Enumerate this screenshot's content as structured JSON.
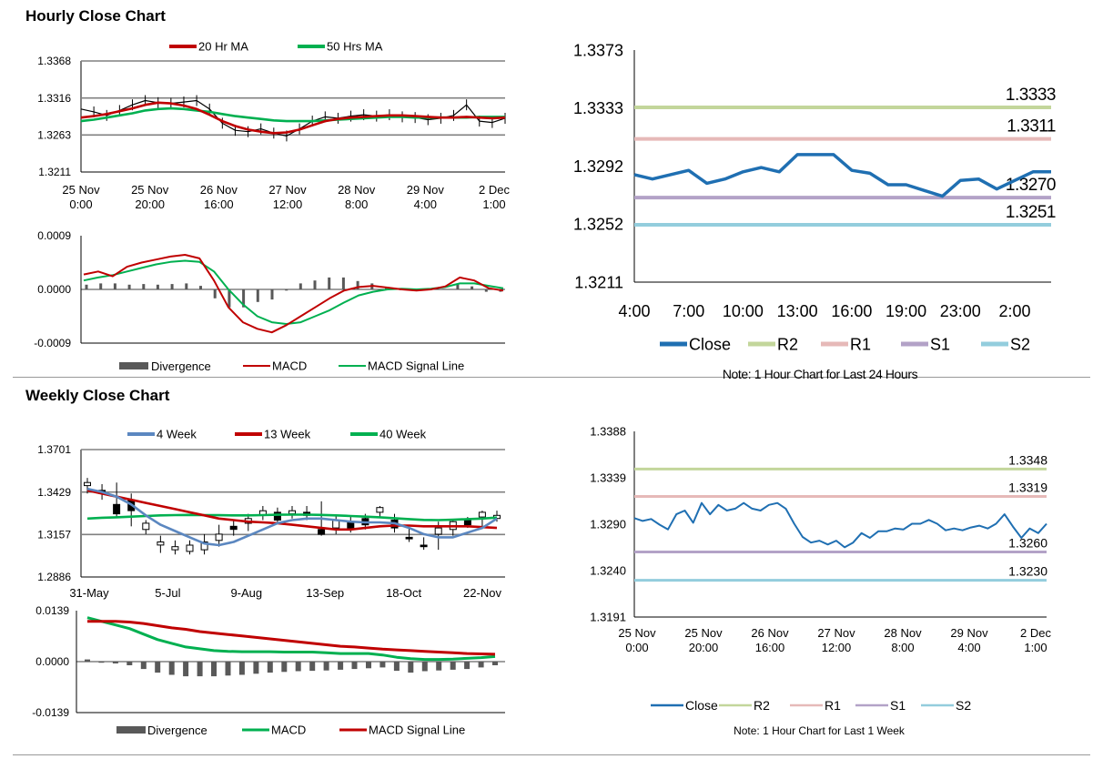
{
  "sections": {
    "hourly_title": "Hourly Close Chart",
    "weekly_title": "Weekly Close Chart"
  },
  "colors": {
    "ma_short": "#c00000",
    "ma_long": "#00b050",
    "ma_4week": "#5b87c0",
    "close": "#1f6fb2",
    "r2": "#c3d69b",
    "r1": "#e6b9b8",
    "s1": "#b3a2c7",
    "s2": "#93cddd",
    "divergence": "#595959",
    "grid": "#808080"
  },
  "chart_data": [
    {
      "id": "hourly-price",
      "type": "line",
      "title": "",
      "legend": [
        "20 Hr MA",
        "50 Hrs MA"
      ],
      "y_ticks": [
        "1.3368",
        "1.3316",
        "1.3263",
        "1.3211"
      ],
      "ylim": [
        1.3211,
        1.3368
      ],
      "x_ticks": [
        [
          "25 Nov",
          "0:00"
        ],
        [
          "25 Nov",
          "20:00"
        ],
        [
          "26 Nov",
          "16:00"
        ],
        [
          "27 Nov",
          "12:00"
        ],
        [
          "28 Nov",
          "8:00"
        ],
        [
          "29 Nov",
          "4:00"
        ],
        [
          "2 Dec",
          "1:00"
        ]
      ],
      "close": [
        1.33,
        1.3296,
        1.3291,
        1.3298,
        1.3306,
        1.3312,
        1.3309,
        1.3308,
        1.331,
        1.3312,
        1.33,
        1.328,
        1.327,
        1.3268,
        1.3272,
        1.3266,
        1.3262,
        1.3272,
        1.3283,
        1.3289,
        1.3287,
        1.329,
        1.3292,
        1.329,
        1.3292,
        1.3289,
        1.3288,
        1.3285,
        1.3287,
        1.3291,
        1.3306,
        1.3283,
        1.3281,
        1.3287
      ],
      "ma20": [
        1.3288,
        1.329,
        1.3293,
        1.3297,
        1.3301,
        1.3306,
        1.3309,
        1.3308,
        1.3305,
        1.33,
        1.3292,
        1.3283,
        1.3276,
        1.3271,
        1.3268,
        1.3266,
        1.3267,
        1.3271,
        1.3277,
        1.3283,
        1.3286,
        1.3288,
        1.3289,
        1.329,
        1.3291,
        1.3291,
        1.329,
        1.3289,
        1.3288,
        1.3288,
        1.3289,
        1.3288,
        1.3287,
        1.3288
      ],
      "ma50": [
        1.3283,
        1.3285,
        1.3288,
        1.3291,
        1.3294,
        1.3298,
        1.33,
        1.3301,
        1.33,
        1.3298,
        1.3296,
        1.3293,
        1.329,
        1.3288,
        1.3286,
        1.3284,
        1.3283,
        1.3283,
        1.3283,
        1.3284,
        1.3285,
        1.3286,
        1.3287,
        1.3288,
        1.3289,
        1.3289,
        1.3288,
        1.3288,
        1.3288,
        1.3288,
        1.3288,
        1.3289,
        1.3289,
        1.3289
      ]
    },
    {
      "id": "hourly-macd",
      "type": "line",
      "legend": [
        "Divergence",
        "MACD",
        "MACD Signal Line"
      ],
      "y_ticks": [
        "0.0009",
        "0.0000",
        "-0.0009"
      ],
      "ylim": [
        -0.0009,
        0.0009
      ],
      "macd": [
        0.00025,
        0.0003,
        0.00022,
        0.00038,
        0.00045,
        0.0005,
        0.00055,
        0.00058,
        0.00052,
        0.00015,
        -0.0003,
        -0.00055,
        -0.00066,
        -0.00072,
        -0.0006,
        -0.00045,
        -0.0003,
        -0.00015,
        -2e-05,
        4e-05,
        6e-05,
        3e-05,
        0.0,
        -2e-05,
        0.0,
        5e-05,
        0.0002,
        0.00015,
        2e-05,
        -2e-05
      ],
      "signal": [
        0.00015,
        0.0002,
        0.00024,
        0.0003,
        0.00036,
        0.00042,
        0.00046,
        0.00048,
        0.00046,
        0.0003,
        0.0,
        -0.00025,
        -0.00045,
        -0.00055,
        -0.00058,
        -0.00055,
        -0.00045,
        -0.00035,
        -0.00022,
        -0.0001,
        -4e-05,
        0.0,
        1e-05,
        0.0,
        1e-05,
        4e-05,
        0.0001,
        0.0001,
        6e-05,
        2e-05
      ],
      "divergence": [
        8e-05,
        0.0001,
        0.0001,
        8e-05,
        9e-05,
        8e-05,
        9e-05,
        0.0001,
        6e-05,
        -0.00015,
        -0.0003,
        -0.0003,
        -0.00021,
        -0.00017,
        -2e-05,
        0.0001,
        0.00015,
        0.0002,
        0.0002,
        0.00014,
        0.0001,
        3e-05,
        -1e-05,
        -2e-05,
        -1e-05,
        1e-05,
        0.0001,
        5e-05,
        -4e-05,
        -4e-05
      ]
    },
    {
      "id": "hourly-24h",
      "type": "line",
      "y_ticks": [
        "1.3373",
        "1.3333",
        "1.3292",
        "1.3252",
        "1.3211"
      ],
      "ylim": [
        1.3211,
        1.3373
      ],
      "x_ticks": [
        "4:00",
        "7:00",
        "10:00",
        "13:00",
        "16:00",
        "19:00",
        "23:00",
        "2:00"
      ],
      "close": [
        1.3286,
        1.3283,
        1.3286,
        1.3289,
        1.328,
        1.3283,
        1.3288,
        1.3291,
        1.3288,
        1.33,
        1.33,
        1.33,
        1.3289,
        1.3287,
        1.3279,
        1.3279,
        1.3275,
        1.3271,
        1.3282,
        1.3283,
        1.3276,
        1.3282,
        1.3288,
        1.3288
      ],
      "levels": [
        {
          "name": "R2",
          "value": 1.3333,
          "label": "1.3333"
        },
        {
          "name": "R1",
          "value": 1.3311,
          "label": "1.3311"
        },
        {
          "name": "S1",
          "value": 1.327,
          "label": "1.3270"
        },
        {
          "name": "S2",
          "value": 1.3251,
          "label": "1.3251"
        }
      ],
      "legend": [
        "Close",
        "R2",
        "R1",
        "S1",
        "S2"
      ],
      "note": "Note: 1 Hour Chart for Last 24 Hours"
    },
    {
      "id": "weekly-price",
      "type": "line",
      "legend": [
        "4 Week",
        "13 Week",
        "40 Week"
      ],
      "y_ticks": [
        "1.3701",
        "1.3429",
        "1.3157",
        "1.2886"
      ],
      "ylim": [
        1.2886,
        1.3701
      ],
      "x_ticks": [
        "31-May",
        "5-Jul",
        "9-Aug",
        "13-Sep",
        "18-Oct",
        "22-Nov"
      ],
      "candles": [
        {
          "o": 1.347,
          "c": 1.349,
          "h": 1.352,
          "l": 1.342
        },
        {
          "o": 1.344,
          "c": 1.342,
          "h": 1.348,
          "l": 1.338
        },
        {
          "o": 1.335,
          "c": 1.329,
          "h": 1.349,
          "l": 1.327
        },
        {
          "o": 1.338,
          "c": 1.331,
          "h": 1.342,
          "l": 1.321
        },
        {
          "o": 1.319,
          "c": 1.323,
          "h": 1.325,
          "l": 1.316
        },
        {
          "o": 1.309,
          "c": 1.311,
          "h": 1.315,
          "l": 1.304
        },
        {
          "o": 1.306,
          "c": 1.308,
          "h": 1.312,
          "l": 1.303
        },
        {
          "o": 1.305,
          "c": 1.309,
          "h": 1.312,
          "l": 1.303
        },
        {
          "o": 1.306,
          "c": 1.311,
          "h": 1.316,
          "l": 1.303
        },
        {
          "o": 1.312,
          "c": 1.316,
          "h": 1.322,
          "l": 1.308
        },
        {
          "o": 1.321,
          "c": 1.319,
          "h": 1.325,
          "l": 1.315
        },
        {
          "o": 1.323,
          "c": 1.326,
          "h": 1.329,
          "l": 1.318
        },
        {
          "o": 1.328,
          "c": 1.331,
          "h": 1.334,
          "l": 1.325
        },
        {
          "o": 1.33,
          "c": 1.325,
          "h": 1.333,
          "l": 1.323
        },
        {
          "o": 1.329,
          "c": 1.331,
          "h": 1.334,
          "l": 1.326
        },
        {
          "o": 1.33,
          "c": 1.328,
          "h": 1.334,
          "l": 1.325
        },
        {
          "o": 1.319,
          "c": 1.316,
          "h": 1.337,
          "l": 1.315
        },
        {
          "o": 1.32,
          "c": 1.325,
          "h": 1.328,
          "l": 1.316
        },
        {
          "o": 1.324,
          "c": 1.32,
          "h": 1.328,
          "l": 1.317
        },
        {
          "o": 1.326,
          "c": 1.322,
          "h": 1.329,
          "l": 1.319
        },
        {
          "o": 1.33,
          "c": 1.333,
          "h": 1.334,
          "l": 1.327
        },
        {
          "o": 1.325,
          "c": 1.32,
          "h": 1.329,
          "l": 1.317
        },
        {
          "o": 1.314,
          "c": 1.313,
          "h": 1.32,
          "l": 1.311
        },
        {
          "o": 1.309,
          "c": 1.308,
          "h": 1.314,
          "l": 1.306
        },
        {
          "o": 1.316,
          "c": 1.32,
          "h": 1.324,
          "l": 1.306
        },
        {
          "o": 1.319,
          "c": 1.324,
          "h": 1.325,
          "l": 1.315
        },
        {
          "o": 1.325,
          "c": 1.322,
          "h": 1.327,
          "l": 1.32
        },
        {
          "o": 1.327,
          "c": 1.33,
          "h": 1.331,
          "l": 1.32
        },
        {
          "o": 1.326,
          "c": 1.328,
          "h": 1.331,
          "l": 1.324
        }
      ],
      "w4": [
        1.345,
        1.343,
        1.34,
        1.335,
        1.328,
        1.322,
        1.318,
        1.314,
        1.31,
        1.309,
        1.311,
        1.315,
        1.319,
        1.323,
        1.325,
        1.326,
        1.326,
        1.325,
        1.324,
        1.3235,
        1.3235,
        1.323,
        1.32,
        1.316,
        1.314,
        1.314,
        1.317,
        1.32,
        1.326
      ],
      "w13": [
        1.344,
        1.342,
        1.34,
        1.338,
        1.336,
        1.334,
        1.332,
        1.33,
        1.328,
        1.326,
        1.325,
        1.324,
        1.3235,
        1.323,
        1.322,
        1.321,
        1.32,
        1.319,
        1.319,
        1.32,
        1.321,
        1.3215,
        1.3215,
        1.321,
        1.321,
        1.321,
        1.321,
        1.3205,
        1.32
      ],
      "w40": [
        1.326,
        1.3265,
        1.3268,
        1.3272,
        1.3276,
        1.328,
        1.3282,
        1.3283,
        1.3282,
        1.3281,
        1.328,
        1.328,
        1.3282,
        1.3284,
        1.3285,
        1.3285,
        1.3283,
        1.328,
        1.3276,
        1.3272,
        1.3268,
        1.3262,
        1.3256,
        1.3251,
        1.325,
        1.3252,
        1.3256,
        1.326,
        1.3266
      ]
    },
    {
      "id": "weekly-macd",
      "type": "line",
      "legend": [
        "Divergence",
        "MACD",
        "MACD Signal Line"
      ],
      "y_ticks": [
        "0.0139",
        "0.0000",
        "-0.0139"
      ],
      "ylim": [
        -0.0139,
        0.0139
      ],
      "macd": [
        0.012,
        0.011,
        0.01,
        0.009,
        0.0075,
        0.006,
        0.005,
        0.004,
        0.0035,
        0.003,
        0.0028,
        0.0027,
        0.0027,
        0.0027,
        0.0026,
        0.0026,
        0.0026,
        0.0024,
        0.0022,
        0.0022,
        0.0022,
        0.0018,
        0.0012,
        0.0008,
        0.0006,
        0.0006,
        0.0007,
        0.0009,
        0.0011,
        0.0014
      ],
      "signal": [
        0.011,
        0.011,
        0.011,
        0.0108,
        0.0104,
        0.0098,
        0.0092,
        0.0088,
        0.0082,
        0.0078,
        0.0074,
        0.007,
        0.0066,
        0.0062,
        0.0058,
        0.0054,
        0.005,
        0.0046,
        0.0042,
        0.004,
        0.0037,
        0.0034,
        0.0032,
        0.003,
        0.0028,
        0.0026,
        0.0024,
        0.0022,
        0.0021,
        0.002
      ],
      "divergence": [
        0.0006,
        -0.0003,
        -0.0005,
        -0.001,
        -0.002,
        -0.003,
        -0.0036,
        -0.004,
        -0.004,
        -0.004,
        -0.0038,
        -0.0036,
        -0.0033,
        -0.003,
        -0.0028,
        -0.0026,
        -0.0025,
        -0.0024,
        -0.0022,
        -0.002,
        -0.0018,
        -0.0016,
        -0.0025,
        -0.003,
        -0.0026,
        -0.0024,
        -0.0022,
        -0.002,
        -0.0016,
        -0.001
      ]
    },
    {
      "id": "weekly-7d",
      "type": "line",
      "y_ticks": [
        "1.3388",
        "1.3339",
        "1.3290",
        "1.3240",
        "1.3191"
      ],
      "ylim": [
        1.3191,
        1.3388
      ],
      "x_ticks": [
        [
          "25 Nov",
          "0:00"
        ],
        [
          "25 Nov",
          "20:00"
        ],
        [
          "26 Nov",
          "16:00"
        ],
        [
          "27 Nov",
          "12:00"
        ],
        [
          "28 Nov",
          "8:00"
        ],
        [
          "29 Nov",
          "4:00"
        ],
        [
          "2 Dec",
          "1:00"
        ]
      ],
      "close": [
        1.3296,
        1.3293,
        1.3295,
        1.3289,
        1.3284,
        1.33,
        1.3304,
        1.3291,
        1.3312,
        1.33,
        1.331,
        1.3304,
        1.3306,
        1.3312,
        1.3306,
        1.3304,
        1.331,
        1.3312,
        1.3306,
        1.329,
        1.3276,
        1.327,
        1.3272,
        1.3268,
        1.3272,
        1.3265,
        1.327,
        1.328,
        1.3275,
        1.3282,
        1.3282,
        1.3285,
        1.3284,
        1.329,
        1.329,
        1.3294,
        1.329,
        1.3283,
        1.3285,
        1.3283,
        1.3286,
        1.3288,
        1.3285,
        1.329,
        1.33,
        1.3287,
        1.3275,
        1.3285,
        1.328,
        1.329
      ],
      "levels": [
        {
          "name": "R2",
          "value": 1.3348,
          "label": "1.3348"
        },
        {
          "name": "R1",
          "value": 1.3319,
          "label": "1.3319"
        },
        {
          "name": "S1",
          "value": 1.326,
          "label": "1.3260"
        },
        {
          "name": "S2",
          "value": 1.323,
          "label": "1.3230"
        }
      ],
      "legend": [
        "Close",
        "R2",
        "R1",
        "S1",
        "S2"
      ],
      "note": "Note: 1 Hour Chart for  Last 1 Week"
    }
  ]
}
